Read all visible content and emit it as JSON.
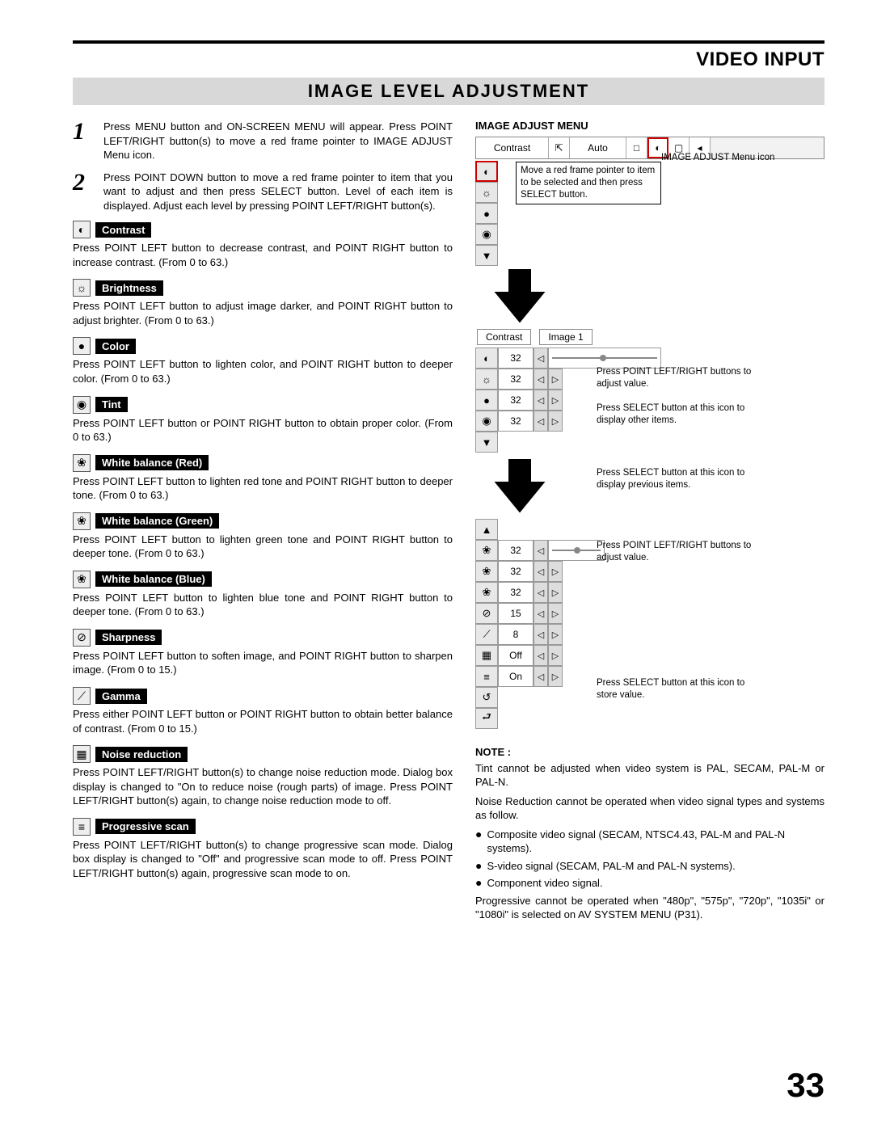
{
  "header": {
    "section": "VIDEO INPUT",
    "subsection": "IMAGE LEVEL ADJUSTMENT"
  },
  "steps": [
    {
      "num": "1",
      "text": "Press MENU button and ON-SCREEN MENU will appear.  Press POINT LEFT/RIGHT button(s) to move a red frame pointer to IMAGE ADJUST Menu icon."
    },
    {
      "num": "2",
      "text": "Press POINT DOWN button to move a red frame pointer to item that you want to adjust and then press SELECT button.  Level of each item is displayed.  Adjust each level by pressing POINT LEFT/RIGHT button(s)."
    }
  ],
  "items": [
    {
      "icon": "◐",
      "label": "Contrast",
      "desc": "Press POINT LEFT button to decrease contrast, and POINT RIGHT button to increase contrast.  (From 0 to 63.)"
    },
    {
      "icon": "☼",
      "label": "Brightness",
      "desc": "Press POINT LEFT button to adjust image darker, and POINT RIGHT button to adjust brighter.  (From 0 to 63.)"
    },
    {
      "icon": "●",
      "label": "Color",
      "desc": "Press POINT LEFT button to lighten color, and POINT RIGHT button to deeper color.  (From 0 to 63.)"
    },
    {
      "icon": "◉",
      "label": "Tint",
      "desc": "Press POINT LEFT button or POINT RIGHT button to obtain proper color.  (From 0 to 63.)"
    },
    {
      "icon": "❀",
      "label": "White balance (Red)",
      "desc": "Press POINT LEFT button to lighten red tone and POINT RIGHT button to deeper tone.  (From 0 to 63.)"
    },
    {
      "icon": "❀",
      "label": "White balance (Green)",
      "desc": "Press POINT LEFT button to lighten green tone and POINT RIGHT button to deeper tone.  (From 0 to 63.)"
    },
    {
      "icon": "❀",
      "label": "White balance (Blue)",
      "desc": "Press POINT LEFT button to lighten blue tone and POINT RIGHT button to deeper tone.  (From 0 to 63.)"
    },
    {
      "icon": "⊘",
      "label": "Sharpness",
      "desc": "Press POINT LEFT button to soften image, and POINT RIGHT button to sharpen image.  (From 0 to 15.)"
    },
    {
      "icon": "⟋",
      "label": "Gamma",
      "desc": "Press either POINT LEFT button or POINT RIGHT button to obtain better balance of contrast.  (From 0 to 15.)"
    },
    {
      "icon": "▦",
      "label": "Noise reduction",
      "desc": "Press POINT LEFT/RIGHT button(s) to change noise reduction mode. Dialog box display is changed to \"On to reduce noise (rough parts) of image. Press POINT LEFT/RIGHT button(s) again, to change noise reduction mode to off."
    },
    {
      "icon": "≡",
      "label": "Progressive scan",
      "desc": "Press POINT LEFT/RIGHT button(s) to change progressive scan mode.  Dialog box display is changed to \"Off\" and progressive scan mode to off. Press POINT LEFT/RIGHT button(s) again, progressive scan mode to on."
    }
  ],
  "right": {
    "menu_title": "IMAGE ADJUST MENU",
    "strip": {
      "label": "Contrast",
      "mode": "Auto"
    },
    "callout_menuicon": "IMAGE ADJUST Menu icon",
    "callout_select": "Move a red frame pointer to item to be selected and then press SELECT button.",
    "panel2": {
      "left_label": "Contrast",
      "right_label": "Image 1"
    },
    "rows_a": [
      {
        "icon": "◐",
        "val": "32"
      },
      {
        "icon": "☼",
        "val": "32"
      },
      {
        "icon": "●",
        "val": "32"
      },
      {
        "icon": "◉",
        "val": "32"
      }
    ],
    "row_a_down": "▼",
    "callout_adjust1": "Press POINT LEFT/RIGHT buttons to adjust value.",
    "callout_display_other": "Press SELECT button at this icon to display other items.",
    "callout_display_prev": "Press SELECT button at this icon to display previous items.",
    "rows_b": [
      {
        "icon": "❀",
        "val": "32"
      },
      {
        "icon": "❀",
        "val": "32"
      },
      {
        "icon": "❀",
        "val": "32"
      },
      {
        "icon": "⊘",
        "val": "15"
      },
      {
        "icon": "⟋",
        "val": "8"
      },
      {
        "icon": "▦",
        "val": "Off"
      },
      {
        "icon": "≡",
        "val": "On"
      },
      {
        "icon": "↺",
        "val": ""
      },
      {
        "icon": "⮐",
        "val": ""
      }
    ],
    "callout_adjust2": "Press POINT LEFT/RIGHT buttons to adjust value.",
    "callout_store": "Press SELECT button at this icon to store value."
  },
  "note": {
    "heading": "NOTE :",
    "p1": "Tint cannot be adjusted when video system is PAL, SECAM, PAL-M or PAL-N.",
    "p2": "Noise Reduction cannot be operated when video signal types and systems as follow.",
    "bullets": [
      "Composite video signal (SECAM, NTSC4.43, PAL-M and PAL-N systems).",
      "S-video signal (SECAM, PAL-M and PAL-N systems).",
      "Component video signal."
    ],
    "p3": "Progressive cannot be operated when \"480p\", \"575p\", \"720p\", \"1035i\" or \"1080i\" is selected on AV SYSTEM MENU (P31)."
  },
  "page_number": "33",
  "colors": {
    "highlight": "#cc0000",
    "gray_bar": "#d8d8d8"
  }
}
